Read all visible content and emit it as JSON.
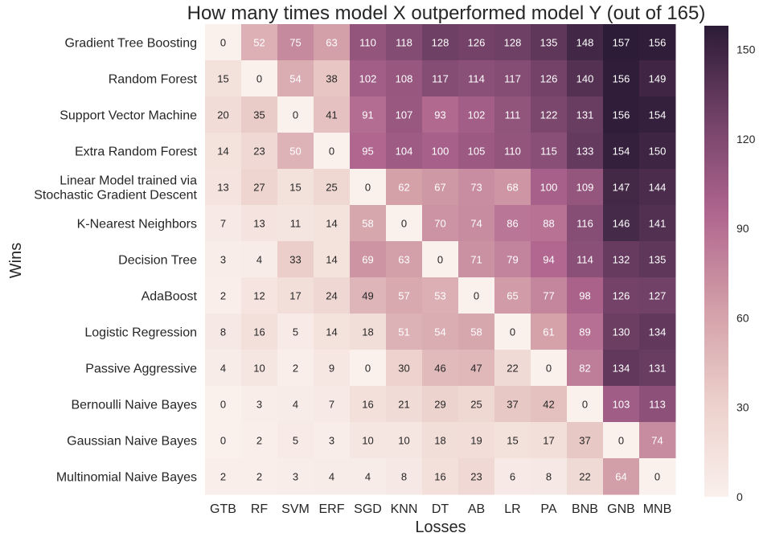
{
  "chart_data": {
    "type": "heatmap",
    "title": "How many times model X outperformed model Y (out of 165)",
    "xlabel": "Losses",
    "ylabel": "Wins",
    "rows": [
      "Gradient Tree Boosting",
      "Random Forest",
      "Support Vector Machine",
      "Extra Random Forest",
      "Linear Model trained via\nStochastic Gradient Descent",
      "K-Nearest Neighbors",
      "Decision Tree",
      "AdaBoost",
      "Logistic Regression",
      "Passive Aggressive",
      "Bernoulli Naive Bayes",
      "Gaussian Naive Bayes",
      "Multinomial Naive Bayes"
    ],
    "columns": [
      "GTB",
      "RF",
      "SVM",
      "ERF",
      "SGD",
      "KNN",
      "DT",
      "AB",
      "LR",
      "PA",
      "BNB",
      "GNB",
      "MNB"
    ],
    "values": [
      [
        0,
        52,
        75,
        63,
        110,
        118,
        128,
        126,
        128,
        135,
        148,
        157,
        156
      ],
      [
        15,
        0,
        54,
        38,
        102,
        108,
        117,
        114,
        117,
        126,
        140,
        156,
        149
      ],
      [
        20,
        35,
        0,
        41,
        91,
        107,
        93,
        102,
        111,
        122,
        131,
        156,
        154
      ],
      [
        14,
        23,
        50,
        0,
        95,
        104,
        100,
        105,
        110,
        115,
        133,
        154,
        150
      ],
      [
        13,
        27,
        15,
        25,
        0,
        62,
        67,
        73,
        68,
        100,
        109,
        147,
        144
      ],
      [
        7,
        13,
        11,
        14,
        58,
        0,
        70,
        74,
        86,
        88,
        116,
        146,
        141
      ],
      [
        3,
        4,
        33,
        14,
        69,
        63,
        0,
        71,
        79,
        94,
        114,
        132,
        135
      ],
      [
        2,
        12,
        17,
        24,
        49,
        57,
        53,
        0,
        65,
        77,
        98,
        126,
        127
      ],
      [
        8,
        16,
        5,
        14,
        18,
        51,
        54,
        58,
        0,
        61,
        89,
        130,
        134
      ],
      [
        4,
        10,
        2,
        9,
        0,
        30,
        46,
        47,
        22,
        0,
        82,
        134,
        131
      ],
      [
        0,
        3,
        4,
        7,
        16,
        21,
        29,
        25,
        37,
        42,
        0,
        103,
        113
      ],
      [
        0,
        2,
        5,
        3,
        10,
        10,
        18,
        19,
        15,
        17,
        37,
        0,
        74
      ],
      [
        2,
        2,
        3,
        4,
        4,
        8,
        16,
        23,
        6,
        8,
        22,
        64,
        0
      ]
    ],
    "colorbar": {
      "min": 0,
      "max": 158,
      "ticks": [
        0,
        30,
        60,
        90,
        120,
        150
      ]
    },
    "colors": {
      "low": "#faf0ec",
      "mid": "#b0668f",
      "high": "#2b1b36",
      "text_dark": "#262626",
      "text_light": "#ffffff"
    },
    "grid": false
  }
}
